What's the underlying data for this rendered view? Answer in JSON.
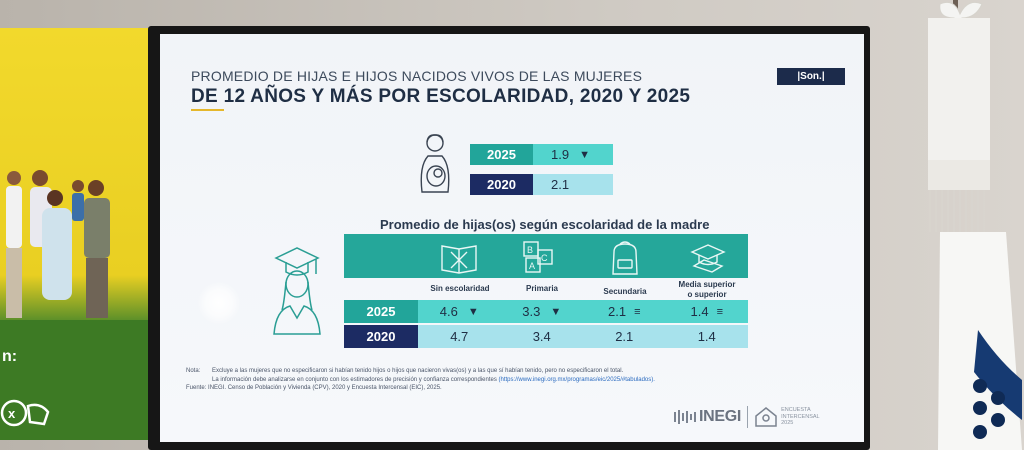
{
  "slide": {
    "title_line1": "PROMEDIO DE HIJAS E HIJOS NACIDOS VIVOS DE LAS MUJERES",
    "title_line2": "DE 12 AÑOS Y MÁS POR ESCOLARIDAD, 2020 Y 2025",
    "badge": "|Son.|",
    "summary": [
      {
        "year": "2025",
        "value": "1.9",
        "trend": "▼"
      },
      {
        "year": "2020",
        "value": "2.1"
      }
    ],
    "subtitle": "Promedio de hijas(os) según escolaridad de la madre",
    "categories": [
      "Sin escolaridad",
      "Primaria",
      "Secundaria",
      "Media superior o superior"
    ],
    "category_line1": "Media superior",
    "category_line2": "o superior",
    "rows": [
      {
        "year": "2025",
        "values": [
          "4.6",
          "3.3",
          "2.1",
          "1.4"
        ],
        "marks": [
          "▼",
          "▼",
          "≡",
          "≡"
        ]
      },
      {
        "year": "2020",
        "values": [
          "4.7",
          "3.4",
          "2.1",
          "1.4"
        ]
      }
    ],
    "note_label": "Nota:",
    "note_line1": "Excluye a las mujeres que no especificaron si habían tenido hijos o hijos que nacieron vivas(os) y a las que sí habían tenido, pero no especificaron el total.",
    "note_line2": "La información debe analizarse en conjunto con los estimadores de precisión y confianza correspondientes",
    "note_link": "(https://www.inegi.org.mx/programas/eic/2025/#tabulados).",
    "source_label": "Fuente:",
    "source_text": "INEGI. Censo de Población y Vivienda (CPV), 2020 y Encuesta Intercensal (EIC), 2025.",
    "logo_text": "INEGI",
    "census_line1": "ENCUESTA",
    "census_line2": "INTERCENSAL",
    "census_line3": "2025"
  },
  "left_screen": {
    "text": "n:"
  },
  "colors": {
    "teal": "#22a59a",
    "light_teal": "#52d4cd",
    "navy": "#1c2b63",
    "pale": "#a7e2ec",
    "accent": "#e5b72b"
  }
}
